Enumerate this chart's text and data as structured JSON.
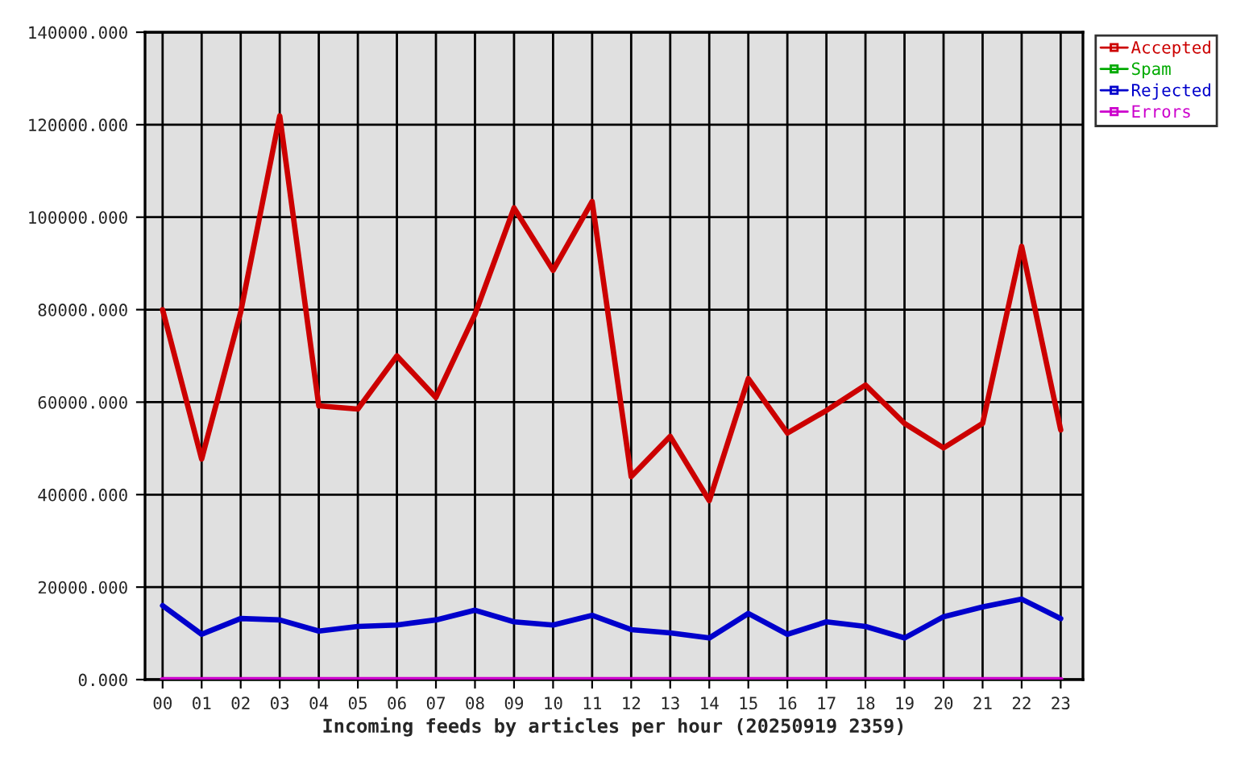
{
  "chart_data": {
    "type": "line",
    "xlabel": "Incoming feeds by articles per hour (20250919 2359)",
    "categories": [
      "00",
      "01",
      "02",
      "03",
      "04",
      "05",
      "06",
      "07",
      "08",
      "09",
      "10",
      "11",
      "12",
      "13",
      "14",
      "15",
      "16",
      "17",
      "18",
      "19",
      "20",
      "21",
      "22",
      "23"
    ],
    "series": [
      {
        "name": "Accepted",
        "color": "#cc0000",
        "values": [
          80000,
          47700,
          79500,
          121900,
          59200,
          58500,
          70000,
          61000,
          79000,
          102000,
          88500,
          103400,
          43900,
          52600,
          38700,
          65100,
          53300,
          58200,
          63700,
          55400,
          50100,
          55400,
          93700,
          54000
        ]
      },
      {
        "name": "Spam",
        "color": "#00aa00",
        "values": [
          null,
          null,
          null,
          null,
          null,
          null,
          null,
          null,
          null,
          null,
          null,
          null,
          null,
          null,
          null,
          null,
          null,
          null,
          null,
          null,
          null,
          null,
          null,
          null
        ]
      },
      {
        "name": "Rejected",
        "color": "#0000cc",
        "values": [
          16000,
          9800,
          13200,
          12900,
          10500,
          11500,
          11800,
          12900,
          15000,
          12500,
          11800,
          13900,
          10800,
          10100,
          9000,
          14300,
          9800,
          12500,
          11500,
          9000,
          13600,
          15700,
          17400,
          13200
        ]
      },
      {
        "name": "Errors",
        "color": "#cc00cc",
        "values": [
          0,
          0,
          0,
          0,
          0,
          0,
          0,
          0,
          0,
          0,
          0,
          0,
          0,
          0,
          0,
          0,
          0,
          0,
          0,
          0,
          0,
          0,
          0,
          0
        ]
      }
    ],
    "ylim": [
      0,
      140000
    ],
    "yticks": [
      {
        "value": 0,
        "label": "0.000"
      },
      {
        "value": 20000,
        "label": "20000.000"
      },
      {
        "value": 40000,
        "label": "40000.000"
      },
      {
        "value": 60000,
        "label": "60000.000"
      },
      {
        "value": 80000,
        "label": "80000.000"
      },
      {
        "value": 100000,
        "label": "100000.000"
      },
      {
        "value": 120000,
        "label": "120000.000"
      },
      {
        "value": 140000,
        "label": "140000.000"
      }
    ],
    "grid": true,
    "legend": "top right",
    "marker": "none",
    "line_style": "solid"
  }
}
